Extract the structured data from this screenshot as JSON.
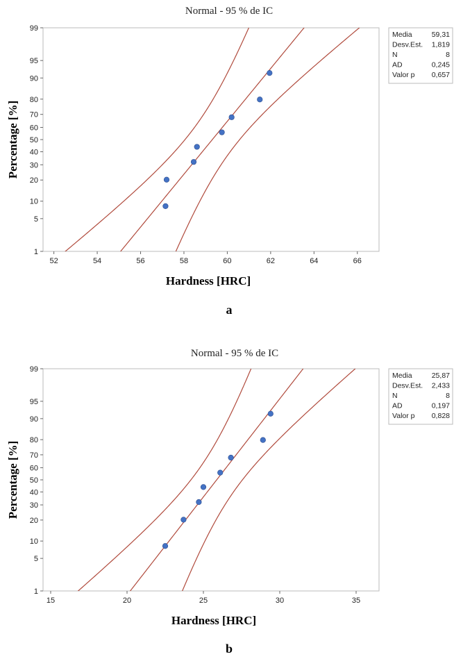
{
  "chart_data": [
    {
      "type": "scatter",
      "panel_label": "a",
      "title": "Normal - 95 % de IC",
      "xlabel": "Hardness [HRC]",
      "ylabel": "Percentage [%]",
      "xlim": [
        51.5,
        67
      ],
      "xticks": [
        52,
        54,
        56,
        58,
        60,
        62,
        64,
        66
      ],
      "yscale": "normal-probability",
      "ylim": [
        1,
        99
      ],
      "yticks": [
        1,
        5,
        10,
        20,
        30,
        40,
        50,
        60,
        70,
        80,
        90,
        95,
        99
      ],
      "grid": false,
      "points": {
        "x": [
          57.15,
          57.2,
          58.45,
          58.6,
          59.75,
          60.2,
          61.5,
          61.95
        ],
        "y": [
          8.3,
          20.2,
          32.1,
          44.0,
          56.0,
          67.9,
          79.8,
          91.7
        ]
      },
      "fit": {
        "mean": 59.31,
        "sd": 1.819,
        "ci": 0.95,
        "n": 8
      },
      "stats_legend": [
        {
          "label": "Media",
          "value": "59,31"
        },
        {
          "label": "Desv.Est.",
          "value": "1,819"
        },
        {
          "label": "N",
          "value": "8"
        },
        {
          "label": "AD",
          "value": "0,245"
        },
        {
          "label": "Valor p",
          "value": "0,657"
        }
      ],
      "line_color": "#b04a3c",
      "point_color": "#4472c4"
    },
    {
      "type": "scatter",
      "panel_label": "b",
      "title": "Normal - 95 % de IC",
      "xlabel": "Hardness [HRC]",
      "ylabel": "Percentage [%]",
      "xlim": [
        14.5,
        36.5
      ],
      "xticks": [
        15,
        20,
        25,
        30,
        35
      ],
      "yscale": "normal-probability",
      "ylim": [
        1,
        99
      ],
      "yticks": [
        1,
        5,
        10,
        20,
        30,
        40,
        50,
        60,
        70,
        80,
        90,
        95,
        99
      ],
      "grid": false,
      "points": {
        "x": [
          22.5,
          23.7,
          24.7,
          25.0,
          26.1,
          26.8,
          28.9,
          29.4
        ],
        "y": [
          8.3,
          20.2,
          32.1,
          44.0,
          56.0,
          67.9,
          79.8,
          91.7
        ]
      },
      "fit": {
        "mean": 25.87,
        "sd": 2.433,
        "ci": 0.95,
        "n": 8
      },
      "stats_legend": [
        {
          "label": "Media",
          "value": "25,87"
        },
        {
          "label": "Desv.Est.",
          "value": "2,433"
        },
        {
          "label": "N",
          "value": "8"
        },
        {
          "label": "AD",
          "value": "0,197"
        },
        {
          "label": "Valor p",
          "value": "0,828"
        }
      ],
      "line_color": "#b04a3c",
      "point_color": "#4472c4"
    }
  ]
}
